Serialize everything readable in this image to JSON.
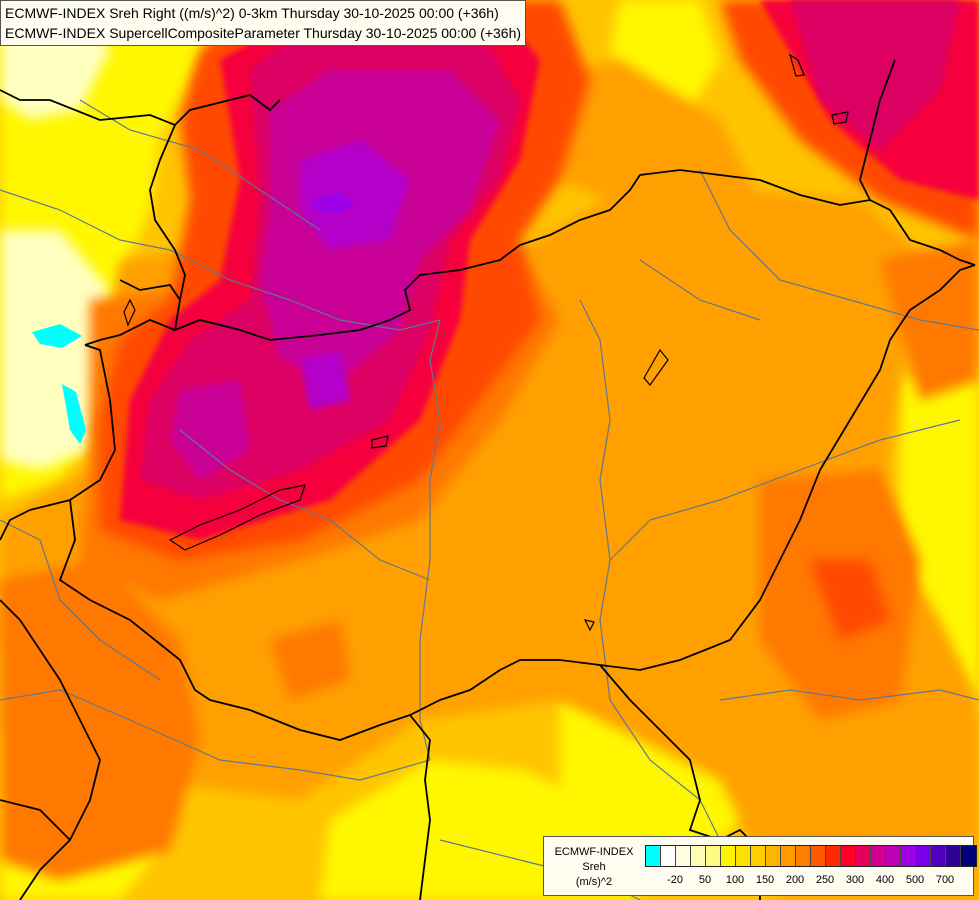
{
  "title": {
    "line1": "ECMWF-INDEX Sreh Right ((m/s)^2) 0-3km Thursday 30-10-2025 00:00 (+36h)",
    "line2": "ECMWF-INDEX SupercellCompositeParameter Thursday 30-10-2025 00:00 (+36h)"
  },
  "legend": {
    "model": "ECMWF-INDEX",
    "variable": "Sreh",
    "unit": "(m/s)^2",
    "colors": [
      "#00ffff",
      "#ffffff",
      "#fffde0",
      "#fffcb4",
      "#fffa82",
      "#fff500",
      "#ffe100",
      "#ffcd00",
      "#ffb400",
      "#ff9b00",
      "#ff7d00",
      "#ff5a00",
      "#ff2800",
      "#ff0028",
      "#e6005a",
      "#d2008c",
      "#be00b4",
      "#a000e6",
      "#7800e6",
      "#5000be",
      "#2d0096",
      "#000078"
    ],
    "ticks": [
      {
        "label": "-20",
        "index": 1
      },
      {
        "label": "50",
        "index": 3
      },
      {
        "label": "100",
        "index": 5
      },
      {
        "label": "150",
        "index": 7
      },
      {
        "label": "200",
        "index": 9
      },
      {
        "label": "250",
        "index": 11
      },
      {
        "label": "300",
        "index": 13
      },
      {
        "label": "400",
        "index": 15
      },
      {
        "label": "500",
        "index": 17
      },
      {
        "label": "700",
        "index": 19
      }
    ]
  },
  "map_colors": {
    "base": "#ffc400",
    "light_yellow": "#fff700",
    "pale": "#ffffc0",
    "orange": "#ffa000",
    "dark_orange": "#ff7800",
    "red_orange": "#ff4a00",
    "red": "#f5003c",
    "crimson": "#dc0064",
    "magenta": "#c80096",
    "violet": "#b400c8",
    "purple": "#a000e6",
    "cyan": "#00ffff",
    "border": "#000000",
    "river": "#607890"
  }
}
